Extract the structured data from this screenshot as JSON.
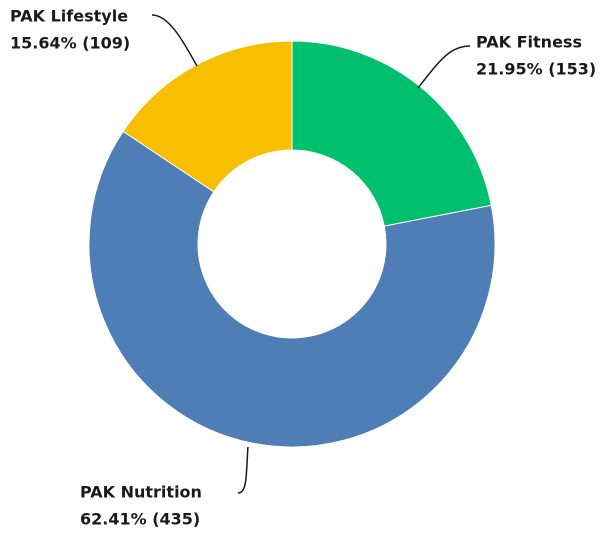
{
  "chart_data": {
    "type": "donut",
    "categories": [
      "PAK Fitness",
      "PAK Nutrition",
      "PAK Lifestyle"
    ],
    "values": [
      153,
      435,
      109
    ],
    "value_labels": [
      "21.95% (153)",
      "62.41% (435)",
      "15.64% (109)"
    ],
    "colors": [
      "#00c06e",
      "#4f7db5",
      "#f8be00"
    ]
  }
}
